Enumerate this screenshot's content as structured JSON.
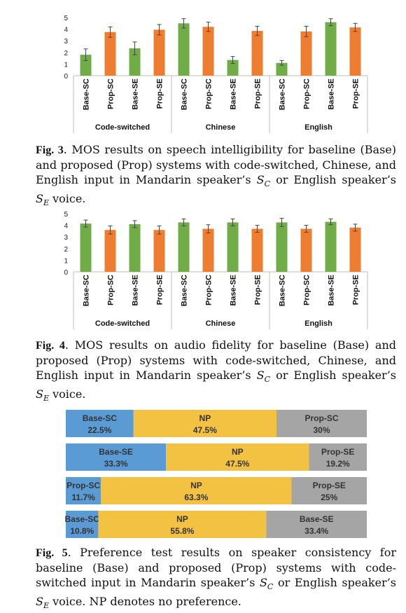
{
  "chart_data": [
    {
      "type": "bar",
      "ylim": [
        0,
        5
      ],
      "yticks": [
        "0",
        "1",
        "2",
        "3",
        "4",
        "5"
      ],
      "groups": [
        {
          "name": "Code-switched",
          "categories": [
            "Base-SC",
            "Prop-SC",
            "Base-SE",
            "Prop-SE"
          ],
          "values": [
            1.8,
            3.75,
            2.35,
            3.95
          ],
          "errors": [
            0.5,
            0.45,
            0.55,
            0.45
          ]
        },
        {
          "name": "Chinese",
          "categories": [
            "Base-SC",
            "Prop-SC",
            "Base-SE",
            "Prop-SE"
          ],
          "values": [
            4.5,
            4.2,
            1.35,
            3.85
          ],
          "errors": [
            0.4,
            0.4,
            0.3,
            0.4
          ]
        },
        {
          "name": "English",
          "categories": [
            "Base-SC",
            "Prop-SC",
            "Base-SE",
            "Prop-SE"
          ],
          "values": [
            1.1,
            3.8,
            4.6,
            4.15
          ],
          "errors": [
            0.2,
            0.45,
            0.3,
            0.35
          ]
        }
      ],
      "colors": {
        "Base": "#70ad47",
        "Prop": "#ed7d31"
      }
    },
    {
      "type": "bar",
      "ylim": [
        0,
        5
      ],
      "yticks": [
        "0",
        "1",
        "2",
        "3",
        "4",
        "5"
      ],
      "groups": [
        {
          "name": "Code-switched",
          "categories": [
            "Base-SC",
            "Prop-SC",
            "Base-SE",
            "Prop-SE"
          ],
          "values": [
            4.15,
            3.6,
            4.1,
            3.6
          ],
          "errors": [
            0.3,
            0.35,
            0.3,
            0.35
          ]
        },
        {
          "name": "Chinese",
          "categories": [
            "Base-SC",
            "Prop-SC",
            "Base-SE",
            "Prop-SE"
          ],
          "values": [
            4.25,
            3.7,
            4.25,
            3.7
          ],
          "errors": [
            0.3,
            0.35,
            0.3,
            0.3
          ]
        },
        {
          "name": "English",
          "categories": [
            "Base-SC",
            "Prop-SC",
            "Base-SE",
            "Prop-SE"
          ],
          "values": [
            4.25,
            3.7,
            4.3,
            3.8
          ],
          "errors": [
            0.35,
            0.3,
            0.25,
            0.3
          ]
        }
      ],
      "colors": {
        "Base": "#70ad47",
        "Prop": "#ed7d31"
      }
    },
    {
      "type": "bar",
      "stacked": true,
      "orientation": "horizontal",
      "rows": [
        [
          {
            "label": "Base-SC",
            "pct": "22.5%",
            "value": 22.5,
            "color": "#5b9bd5"
          },
          {
            "label": "NP",
            "pct": "47.5%",
            "value": 47.5,
            "color": "#f4c242"
          },
          {
            "label": "Prop-SC",
            "pct": "30%",
            "value": 30,
            "color": "#a5a5a5"
          }
        ],
        [
          {
            "label": "Base-SE",
            "pct": "33.3%",
            "value": 33.3,
            "color": "#5b9bd5"
          },
          {
            "label": "NP",
            "pct": "47.5%",
            "value": 47.5,
            "color": "#f4c242"
          },
          {
            "label": "Prop-SE",
            "pct": "19.2%",
            "value": 19.2,
            "color": "#a5a5a5"
          }
        ],
        [
          {
            "label": "Prop-SC",
            "pct": "11.7%",
            "value": 11.7,
            "color": "#5b9bd5"
          },
          {
            "label": "NP",
            "pct": "63.3%",
            "value": 63.3,
            "color": "#f4c242"
          },
          {
            "label": "Prop-SE",
            "pct": "25%",
            "value": 25,
            "color": "#a5a5a5"
          }
        ],
        [
          {
            "label": "Base-SC",
            "pct": "10.8%",
            "value": 10.8,
            "color": "#5b9bd5"
          },
          {
            "label": "NP",
            "pct": "55.8%",
            "value": 55.8,
            "color": "#f4c242"
          },
          {
            "label": "Base-SE",
            "pct": "33.4%",
            "value": 33.4,
            "color": "#a5a5a5"
          }
        ]
      ]
    }
  ],
  "captions": {
    "fig3": {
      "label": "Fig. 3",
      "text": ". MOS results on speech intelligibility for baseline (Base) and proposed (Prop) systems with code-switched, Chinese, and English input in Mandarin speaker’s ",
      "sym1": "S",
      "sub1": "C",
      "mid": " or English speaker’s ",
      "sym2": "S",
      "sub2": "E",
      "end": " voice."
    },
    "fig4": {
      "label": "Fig. 4",
      "text": ". MOS results on audio fidelity for baseline (Base) and proposed (Prop) systems with code-switched, Chinese, and English input in Mandarin speaker’s ",
      "sym1": "S",
      "sub1": "C",
      "mid": " or English speaker’s ",
      "sym2": "S",
      "sub2": "E",
      "end": " voice."
    },
    "fig5": {
      "label": "Fig. 5",
      "text": ". Preference test results on speaker consistency for baseline (Base) and proposed (Prop) systems with code-switched input in Mandarin speaker’s ",
      "sym1": "S",
      "sub1": "C",
      "mid": " or English speaker’s ",
      "sym2": "S",
      "sub2": "E",
      "end": " voice. NP denotes no preference."
    }
  }
}
